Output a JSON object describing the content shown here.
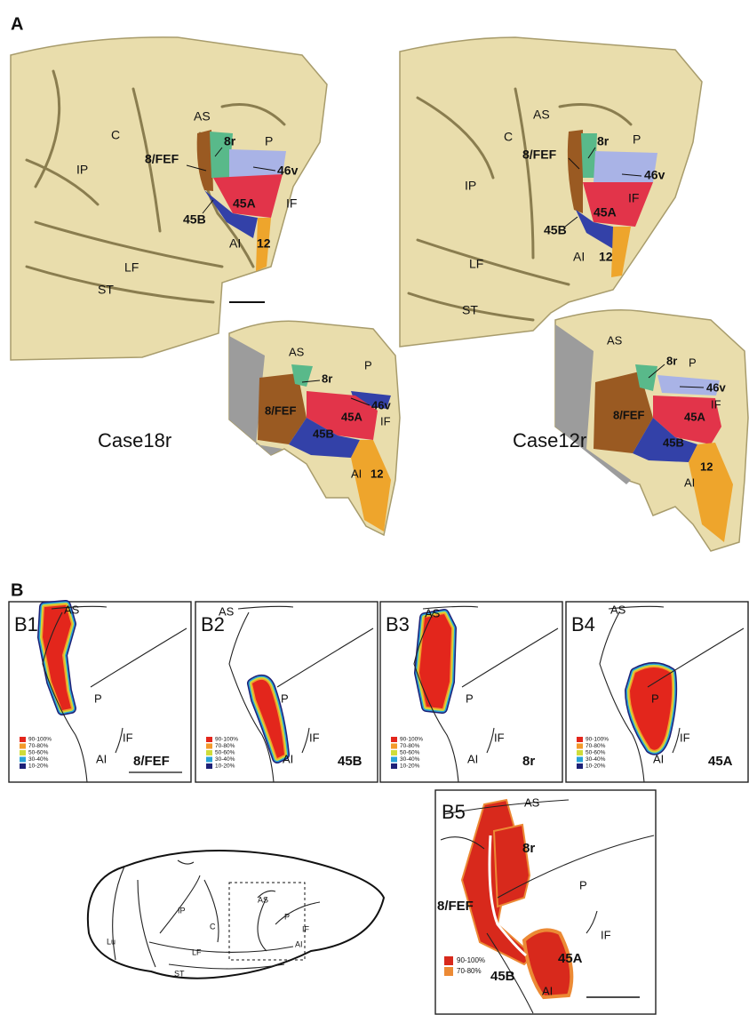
{
  "panel_a": {
    "label": "A",
    "cases": [
      {
        "name": "Case18r",
        "labels": [
          "AS",
          "C",
          "IP",
          "8/FEF",
          "8r",
          "P",
          "46v",
          "45A",
          "IF",
          "45B",
          "AI",
          "12",
          "LF",
          "ST"
        ],
        "inset_labels": [
          "AS",
          "8r",
          "P",
          "8/FEF",
          "46v",
          "45A",
          "IF",
          "45B",
          "AI",
          "12"
        ]
      },
      {
        "name": "Case12r",
        "labels": [
          "AS",
          "C",
          "P",
          "8r",
          "8/FEF",
          "46v",
          "IP",
          "IF",
          "45A",
          "45B",
          "AI",
          "12",
          "LF",
          "ST"
        ],
        "inset_labels": [
          "AS",
          "8r",
          "P",
          "46v",
          "IF",
          "8/FEF",
          "45A",
          "45B",
          "AI",
          "12"
        ]
      }
    ]
  },
  "panel_b": {
    "label": "B",
    "subpanels": [
      {
        "id": "B1",
        "area": "8/FEF",
        "sulci": [
          "AS",
          "P",
          "IF",
          "AI"
        ],
        "legend": [
          {
            "label": "90-100%",
            "color": "#e3261c"
          },
          {
            "label": "70-80%",
            "color": "#f39a2b"
          },
          {
            "label": "50-60%",
            "color": "#cfdc3a"
          },
          {
            "label": "30-40%",
            "color": "#2aa3d8"
          },
          {
            "label": "10-20%",
            "color": "#1d2178"
          }
        ]
      },
      {
        "id": "B2",
        "area": "45B",
        "sulci": [
          "AS",
          "P",
          "IF",
          "AI"
        ],
        "legend": [
          {
            "label": "90-100%",
            "color": "#e3261c"
          },
          {
            "label": "70-80%",
            "color": "#f39a2b"
          },
          {
            "label": "50-60%",
            "color": "#cfdc3a"
          },
          {
            "label": "30-40%",
            "color": "#2aa3d8"
          },
          {
            "label": "10-20%",
            "color": "#1d2178"
          }
        ]
      },
      {
        "id": "B3",
        "area": "8r",
        "sulci": [
          "AS",
          "P",
          "IF",
          "AI"
        ],
        "legend": [
          {
            "label": "90-100%",
            "color": "#e3261c"
          },
          {
            "label": "70-80%",
            "color": "#f39a2b"
          },
          {
            "label": "50-60%",
            "color": "#cfdc3a"
          },
          {
            "label": "30-40%",
            "color": "#2aa3d8"
          },
          {
            "label": "10-20%",
            "color": "#1d2178"
          }
        ]
      },
      {
        "id": "B4",
        "area": "45A",
        "sulci": [
          "AS",
          "P",
          "IF",
          "AI"
        ],
        "legend": [
          {
            "label": "90-100%",
            "color": "#e3261c"
          },
          {
            "label": "70-80%",
            "color": "#f39a2b"
          },
          {
            "label": "50-60%",
            "color": "#cfdc3a"
          },
          {
            "label": "30-40%",
            "color": "#2aa3d8"
          },
          {
            "label": "10-20%",
            "color": "#1d2178"
          }
        ]
      }
    ],
    "b5": {
      "id": "B5",
      "labels": [
        "AS",
        "8r",
        "P",
        "8/FEF",
        "IF",
        "45A",
        "45B",
        "AI"
      ],
      "legend": [
        {
          "label": "90-100%",
          "color": "#d8291c"
        },
        {
          "label": "70-80%",
          "color": "#ec8a35"
        }
      ]
    },
    "schematic": {
      "labels": [
        "IP",
        "C",
        "AS",
        "P",
        "IF",
        "AI",
        "Lu",
        "LF",
        "ST"
      ]
    }
  }
}
